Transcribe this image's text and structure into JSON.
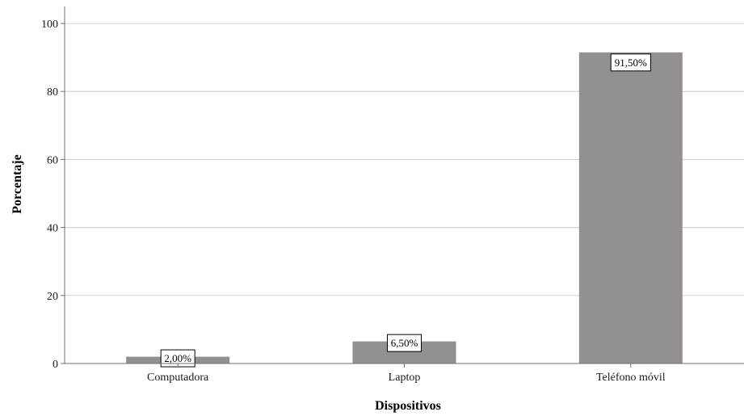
{
  "chart_data": {
    "type": "bar",
    "categories": [
      "Computadora",
      "Laptop",
      "Teléfono móvil"
    ],
    "values": [
      2.0,
      6.5,
      91.5
    ],
    "data_labels": [
      "2,00%",
      "6,50%",
      "91,50%"
    ],
    "xlabel": "Dispositivos",
    "ylabel": "Porcentaje",
    "ylim": [
      0,
      105
    ],
    "yticks": [
      0,
      20,
      40,
      60,
      80,
      100
    ],
    "grid": true,
    "legend": "none",
    "colors": {
      "bar": "#949090",
      "grid": "#d4d4d4",
      "axis": "#6e6e6e",
      "label_box_border": "#000000"
    }
  }
}
